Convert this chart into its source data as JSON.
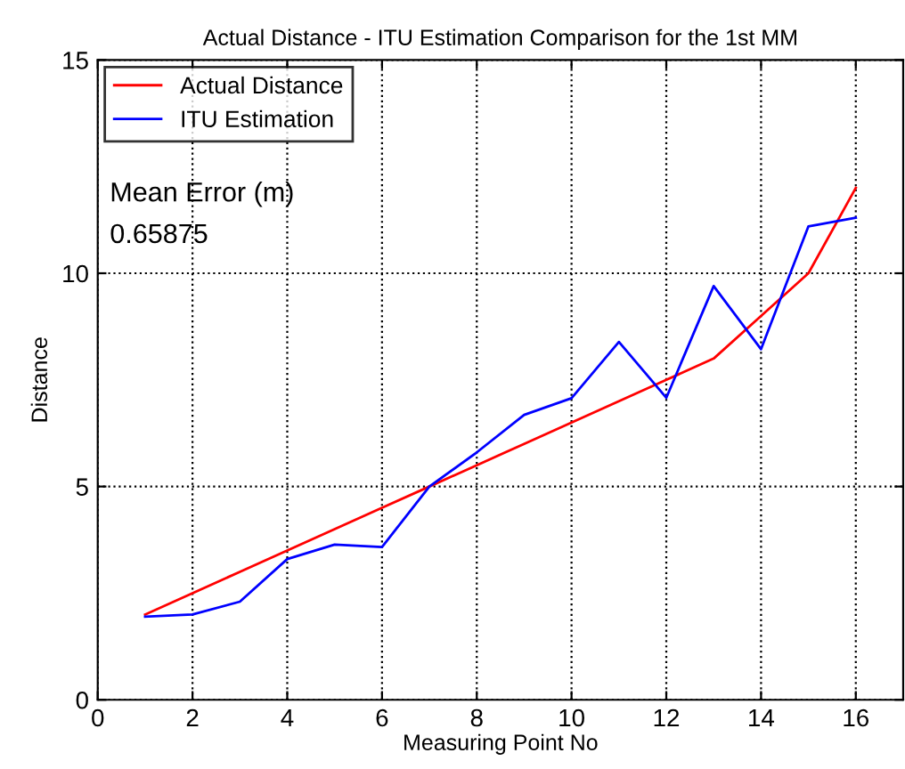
{
  "chart_data": {
    "type": "line",
    "title": "Actual Distance - ITU Estimation Comparison for the 1st MM",
    "xlabel": "Measuring Point No",
    "ylabel": "Distance",
    "x": [
      1,
      2,
      3,
      4,
      5,
      6,
      7,
      8,
      9,
      10,
      11,
      12,
      13,
      14,
      15,
      16
    ],
    "series": [
      {
        "name": "Actual Distance",
        "color": "#ff0000",
        "values": [
          2,
          2.5,
          3,
          3.5,
          4,
          4.5,
          5,
          5.5,
          6,
          6.5,
          7,
          7.5,
          8,
          9,
          10,
          12
        ]
      },
      {
        "name": "ITU Estimation",
        "color": "#0000ff",
        "values": [
          1.95,
          2.0,
          2.3,
          3.3,
          3.64,
          3.58,
          5.0,
          5.8,
          6.68,
          7.07,
          8.39,
          7.08,
          9.7,
          8.22,
          11.1,
          11.3
        ]
      }
    ],
    "annotations": [
      "Mean Error (m)",
      "0.65875"
    ],
    "xlim": [
      0,
      17
    ],
    "ylim": [
      0,
      15
    ],
    "xticks": [
      0,
      2,
      4,
      6,
      8,
      10,
      12,
      14,
      16
    ],
    "yticks": [
      0,
      5,
      10,
      15
    ],
    "grid": true,
    "legend": "top left",
    "marker": "none",
    "line_style": "solid"
  }
}
